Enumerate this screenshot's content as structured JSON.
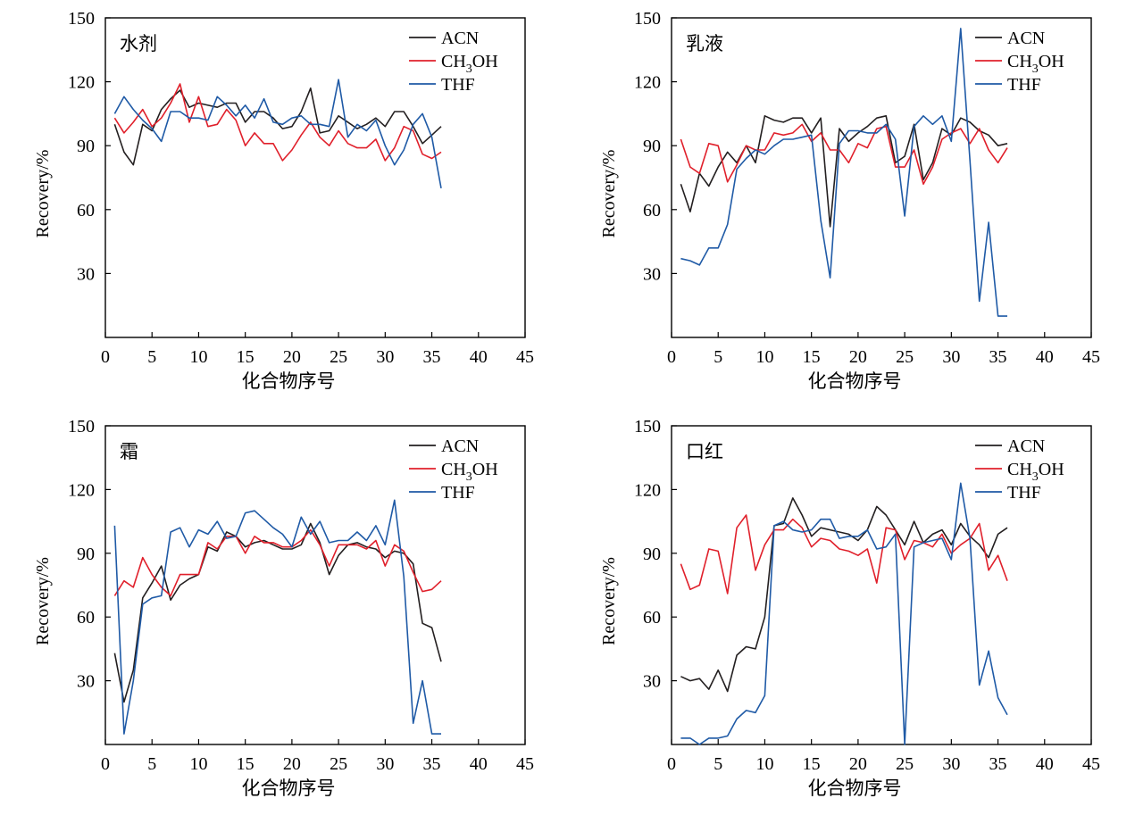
{
  "figure": {
    "xlabel": "化合物序号",
    "ylabel": "Recovery/%"
  },
  "colors": {
    "ACN": "#231f20",
    "CH3OH": "#e0202b",
    "THF": "#1f5aa6",
    "axis": "#000000"
  },
  "legend": {
    "ACN": "ACN",
    "CH3OH_main": "CH",
    "CH3OH_sub": "3",
    "CH3OH_tail": "OH",
    "THF": "THF"
  },
  "chart_data": [
    {
      "type": "line",
      "title": "水剂",
      "xlabel": "化合物序号",
      "ylabel": "Recovery/%",
      "xlim": [
        0,
        45
      ],
      "ylim": [
        0,
        150
      ],
      "xticks": [
        0,
        5,
        10,
        15,
        20,
        25,
        30,
        35,
        40,
        45
      ],
      "yticks": [
        30,
        60,
        90,
        120,
        150
      ],
      "legend_position": "top-right",
      "x": [
        1,
        2,
        3,
        4,
        5,
        6,
        7,
        8,
        9,
        10,
        11,
        12,
        13,
        14,
        15,
        16,
        17,
        18,
        19,
        20,
        21,
        22,
        23,
        24,
        25,
        26,
        27,
        28,
        29,
        30,
        31,
        32,
        33,
        34,
        35,
        36
      ],
      "series": [
        {
          "name": "ACN",
          "key": "ACN",
          "values": [
            100,
            87,
            81,
            100,
            97,
            107,
            112,
            116,
            108,
            110,
            109,
            108,
            110,
            110,
            101,
            106,
            106,
            103,
            98,
            99,
            106,
            117,
            96,
            97,
            104,
            101,
            98,
            100,
            103,
            99,
            106,
            106,
            99,
            91,
            95,
            99
          ]
        },
        {
          "name": "CH3OH",
          "key": "CH3OH",
          "values": [
            103,
            96,
            101,
            107,
            99,
            103,
            110,
            119,
            101,
            113,
            99,
            100,
            107,
            102,
            90,
            96,
            91,
            91,
            83,
            88,
            95,
            101,
            94,
            90,
            97,
            91,
            89,
            89,
            93,
            83,
            89,
            99,
            97,
            86,
            84,
            87
          ]
        },
        {
          "name": "THF",
          "key": "THF",
          "values": [
            105,
            113,
            107,
            102,
            98,
            92,
            106,
            106,
            103,
            103,
            102,
            113,
            109,
            104,
            109,
            103,
            112,
            101,
            100,
            103,
            104,
            100,
            100,
            99,
            121,
            94,
            100,
            97,
            102,
            90,
            81,
            88,
            100,
            105,
            94,
            70
          ]
        }
      ]
    },
    {
      "type": "line",
      "title": "乳液",
      "xlabel": "化合物序号",
      "ylabel": "Recovery/%",
      "xlim": [
        0,
        45
      ],
      "ylim": [
        0,
        150
      ],
      "xticks": [
        0,
        5,
        10,
        15,
        20,
        25,
        30,
        35,
        40,
        45
      ],
      "yticks": [
        30,
        60,
        90,
        120,
        150
      ],
      "legend_position": "top-right",
      "x": [
        1,
        2,
        3,
        4,
        5,
        6,
        7,
        8,
        9,
        10,
        11,
        12,
        13,
        14,
        15,
        16,
        17,
        18,
        19,
        20,
        21,
        22,
        23,
        24,
        25,
        26,
        27,
        28,
        29,
        30,
        31,
        32,
        33,
        34,
        35,
        36
      ],
      "series": [
        {
          "name": "ACN",
          "key": "ACN",
          "values": [
            72,
            59,
            77,
            71,
            80,
            87,
            82,
            90,
            82,
            104,
            102,
            101,
            103,
            103,
            96,
            103,
            52,
            98,
            92,
            96,
            99,
            103,
            104,
            82,
            85,
            100,
            74,
            82,
            98,
            95,
            103,
            101,
            97,
            95,
            90,
            91
          ]
        },
        {
          "name": "CH3OH",
          "key": "CH3OH",
          "values": [
            93,
            80,
            77,
            91,
            90,
            73,
            81,
            90,
            88,
            88,
            96,
            95,
            96,
            100,
            92,
            96,
            88,
            88,
            82,
            91,
            89,
            98,
            99,
            80,
            80,
            88,
            72,
            80,
            93,
            96,
            98,
            91,
            98,
            88,
            82,
            89
          ]
        },
        {
          "name": "THF",
          "key": "THF",
          "values": [
            37,
            36,
            34,
            42,
            42,
            53,
            79,
            84,
            88,
            86,
            90,
            93,
            93,
            94,
            95,
            55,
            28,
            91,
            97,
            97,
            96,
            96,
            100,
            93,
            57,
            99,
            104,
            100,
            104,
            92,
            145,
            83,
            17,
            54,
            10,
            10
          ]
        }
      ]
    },
    {
      "type": "line",
      "title": "霜",
      "xlabel": "化合物序号",
      "ylabel": "Recovery/%",
      "xlim": [
        0,
        45
      ],
      "ylim": [
        0,
        150
      ],
      "xticks": [
        0,
        5,
        10,
        15,
        20,
        25,
        30,
        35,
        40,
        45
      ],
      "yticks": [
        30,
        60,
        90,
        120,
        150
      ],
      "legend_position": "top-right",
      "x": [
        1,
        2,
        3,
        4,
        5,
        6,
        7,
        8,
        9,
        10,
        11,
        12,
        13,
        14,
        15,
        16,
        17,
        18,
        19,
        20,
        21,
        22,
        23,
        24,
        25,
        26,
        27,
        28,
        29,
        30,
        31,
        32,
        33,
        34,
        35,
        36
      ],
      "series": [
        {
          "name": "ACN",
          "key": "ACN",
          "values": [
            43,
            20,
            35,
            69,
            76,
            84,
            68,
            75,
            78,
            80,
            93,
            91,
            100,
            98,
            93,
            95,
            96,
            94,
            92,
            92,
            94,
            104,
            95,
            80,
            89,
            94,
            95,
            93,
            92,
            88,
            91,
            90,
            85,
            57,
            55,
            39
          ]
        },
        {
          "name": "CH3OH",
          "key": "CH3OH",
          "values": [
            70,
            77,
            74,
            88,
            80,
            74,
            70,
            80,
            80,
            80,
            95,
            92,
            98,
            98,
            90,
            98,
            95,
            95,
            93,
            93,
            96,
            101,
            94,
            84,
            94,
            94,
            94,
            92,
            96,
            84,
            94,
            91,
            81,
            72,
            73,
            77
          ]
        },
        {
          "name": "THF",
          "key": "THF",
          "values": [
            103,
            5,
            30,
            66,
            69,
            70,
            100,
            102,
            93,
            101,
            99,
            105,
            97,
            98,
            109,
            110,
            106,
            102,
            99,
            93,
            107,
            99,
            105,
            95,
            96,
            96,
            100,
            96,
            103,
            94,
            115,
            79,
            10,
            30,
            5,
            5
          ]
        }
      ]
    },
    {
      "type": "line",
      "title": "口红",
      "xlabel": "化合物序号",
      "ylabel": "Recovery/%",
      "xlim": [
        0,
        45
      ],
      "ylim": [
        0,
        150
      ],
      "xticks": [
        0,
        5,
        10,
        15,
        20,
        25,
        30,
        35,
        40,
        45
      ],
      "yticks": [
        30,
        60,
        90,
        120,
        150
      ],
      "legend_position": "top-right",
      "x": [
        1,
        2,
        3,
        4,
        5,
        6,
        7,
        8,
        9,
        10,
        11,
        12,
        13,
        14,
        15,
        16,
        17,
        18,
        19,
        20,
        21,
        22,
        23,
        24,
        25,
        26,
        27,
        28,
        29,
        30,
        31,
        32,
        33,
        34,
        35,
        36
      ],
      "series": [
        {
          "name": "ACN",
          "key": "ACN",
          "values": [
            32,
            30,
            31,
            26,
            35,
            25,
            42,
            46,
            45,
            60,
            103,
            104,
            116,
            108,
            98,
            102,
            101,
            100,
            99,
            96,
            101,
            112,
            108,
            101,
            94,
            105,
            95,
            99,
            101,
            94,
            104,
            98,
            94,
            88,
            99,
            102
          ]
        },
        {
          "name": "CH3OH",
          "key": "CH3OH",
          "values": [
            85,
            73,
            75,
            92,
            91,
            71,
            102,
            108,
            82,
            94,
            101,
            101,
            106,
            102,
            93,
            97,
            96,
            92,
            91,
            89,
            92,
            76,
            102,
            101,
            87,
            96,
            95,
            93,
            99,
            90,
            94,
            97,
            104,
            82,
            89,
            77
          ]
        },
        {
          "name": "THF",
          "key": "THF",
          "values": [
            3,
            3,
            0,
            3,
            3,
            4,
            12,
            16,
            15,
            23,
            103,
            105,
            101,
            100,
            101,
            106,
            106,
            97,
            98,
            98,
            101,
            92,
            93,
            99,
            0,
            93,
            95,
            96,
            97,
            87,
            123,
            97,
            28,
            44,
            22,
            14
          ]
        }
      ]
    }
  ]
}
